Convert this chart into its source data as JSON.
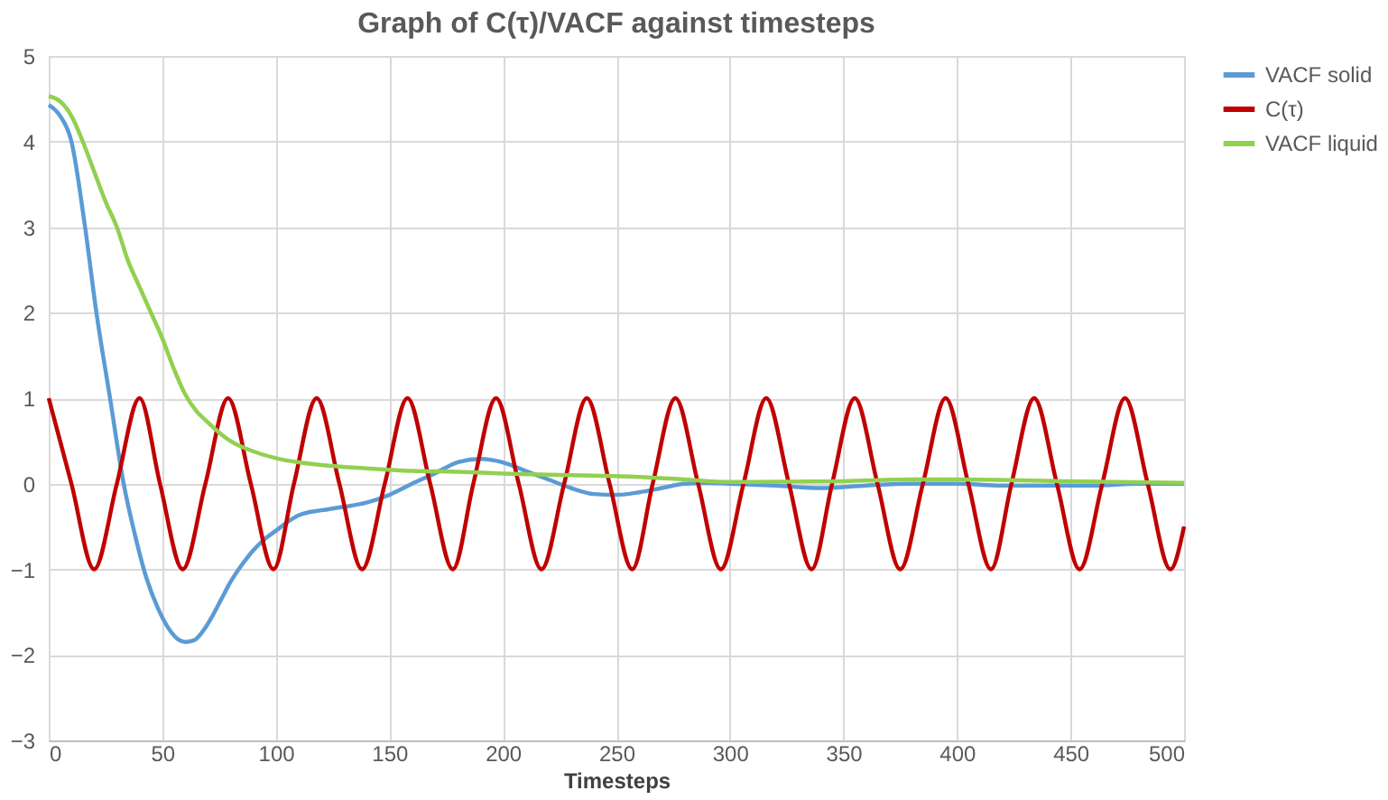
{
  "chart_data": {
    "type": "line",
    "title": "Graph of C(τ)/VACF against timesteps",
    "xlabel": "Timesteps",
    "xlim": [
      0,
      500
    ],
    "xticks": [
      0,
      50,
      100,
      150,
      200,
      250,
      300,
      350,
      400,
      450,
      500
    ],
    "ylim": [
      -3,
      5
    ],
    "yticks": [
      -3,
      -2,
      -1,
      0,
      1,
      2,
      3,
      4,
      5
    ],
    "grid": true,
    "legend": "right",
    "series": [
      {
        "name": "VACF solid",
        "color": "#5b9bd5",
        "x": [
          0,
          5,
          10,
          16,
          21,
          27,
          33,
          38,
          43,
          48,
          53,
          57,
          60,
          64,
          68,
          72,
          76,
          80,
          85,
          90,
          95,
          100,
          105,
          110,
          115,
          120,
          130,
          140,
          150,
          160,
          170,
          180,
          190,
          200,
          210,
          220,
          230,
          240,
          250,
          260,
          270,
          280,
          290,
          300,
          320,
          340,
          360,
          380,
          400,
          420,
          440,
          460,
          480,
          500
        ],
        "values": [
          4.43,
          4.3,
          4.0,
          3.0,
          2.0,
          1.0,
          0.0,
          -0.6,
          -1.1,
          -1.45,
          -1.7,
          -1.82,
          -1.85,
          -1.83,
          -1.72,
          -1.55,
          -1.35,
          -1.15,
          -0.95,
          -0.78,
          -0.65,
          -0.55,
          -0.45,
          -0.37,
          -0.33,
          -0.31,
          -0.27,
          -0.22,
          -0.13,
          0.0,
          0.12,
          0.25,
          0.29,
          0.25,
          0.15,
          0.05,
          -0.05,
          -0.12,
          -0.13,
          -0.1,
          -0.05,
          0.0,
          0.01,
          0.0,
          -0.02,
          -0.05,
          -0.02,
          0.0,
          0.0,
          -0.02,
          -0.02,
          -0.02,
          0.0,
          0.0
        ]
      },
      {
        "name": "C(τ)",
        "color": "#c00000",
        "x": [
          0,
          10,
          20,
          30,
          40,
          49,
          59,
          69,
          79,
          89,
          99,
          108,
          118,
          128,
          138,
          148,
          158,
          168,
          178,
          187,
          197,
          207,
          217,
          227,
          237,
          247,
          257,
          266,
          276,
          286,
          296,
          306,
          316,
          326,
          336,
          345,
          355,
          365,
          375,
          385,
          395,
          405,
          415,
          424,
          434,
          444,
          454,
          464,
          474,
          484,
          494,
          500
        ],
        "values": [
          1,
          0,
          -1,
          0,
          1,
          0,
          -1,
          0,
          1,
          0,
          -1,
          0,
          1,
          0,
          -1,
          0,
          1,
          0,
          -1,
          0,
          1,
          0,
          -1,
          0,
          1,
          0,
          -1,
          0,
          1,
          0,
          -1,
          0,
          1,
          0,
          -1,
          0,
          1,
          0,
          -1,
          0,
          1,
          0,
          -1,
          0,
          1,
          0,
          -1,
          0,
          1,
          0,
          -1,
          -0.5
        ]
      },
      {
        "name": "VACF liquid",
        "color": "#92d050",
        "x": [
          0,
          5,
          10,
          15,
          20,
          25,
          30,
          35,
          40,
          45,
          50,
          55,
          60,
          65,
          70,
          75,
          80,
          90,
          100,
          110,
          120,
          140,
          160,
          180,
          200,
          230,
          260,
          280,
          300,
          350,
          380,
          400,
          450,
          500
        ],
        "values": [
          4.53,
          4.47,
          4.3,
          4.0,
          3.65,
          3.3,
          3.0,
          2.6,
          2.3,
          2.0,
          1.7,
          1.35,
          1.05,
          0.85,
          0.72,
          0.6,
          0.5,
          0.38,
          0.3,
          0.25,
          0.22,
          0.18,
          0.15,
          0.14,
          0.12,
          0.1,
          0.08,
          0.05,
          0.02,
          0.03,
          0.05,
          0.05,
          0.03,
          0.01
        ]
      }
    ]
  }
}
